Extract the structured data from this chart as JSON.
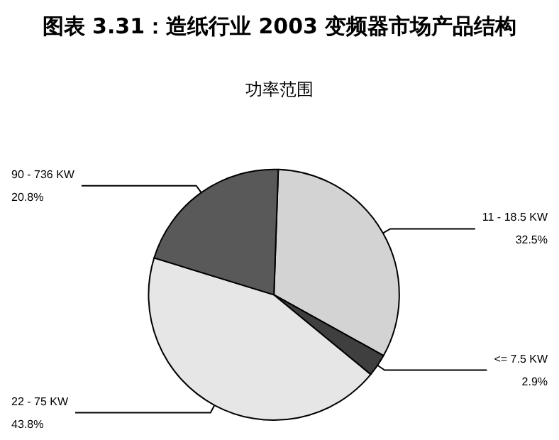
{
  "chart_data": {
    "type": "pie",
    "title": "图表 3.31：造纸行业 2003 变频器市场产品结构",
    "subtitle": "功率范围",
    "categories": [
      "11 - 18.5 KW",
      "<= 7.5 KW",
      "22 - 75 KW",
      "90 - 736 KW"
    ],
    "values": [
      32.5,
      2.9,
      43.8,
      20.8
    ],
    "colors": [
      "#d3d3d3",
      "#3f3f3f",
      "#e6e6e6",
      "#595959"
    ],
    "value_labels": [
      "32.5%",
      "2.9%",
      "43.8%",
      "20.8%"
    ]
  }
}
